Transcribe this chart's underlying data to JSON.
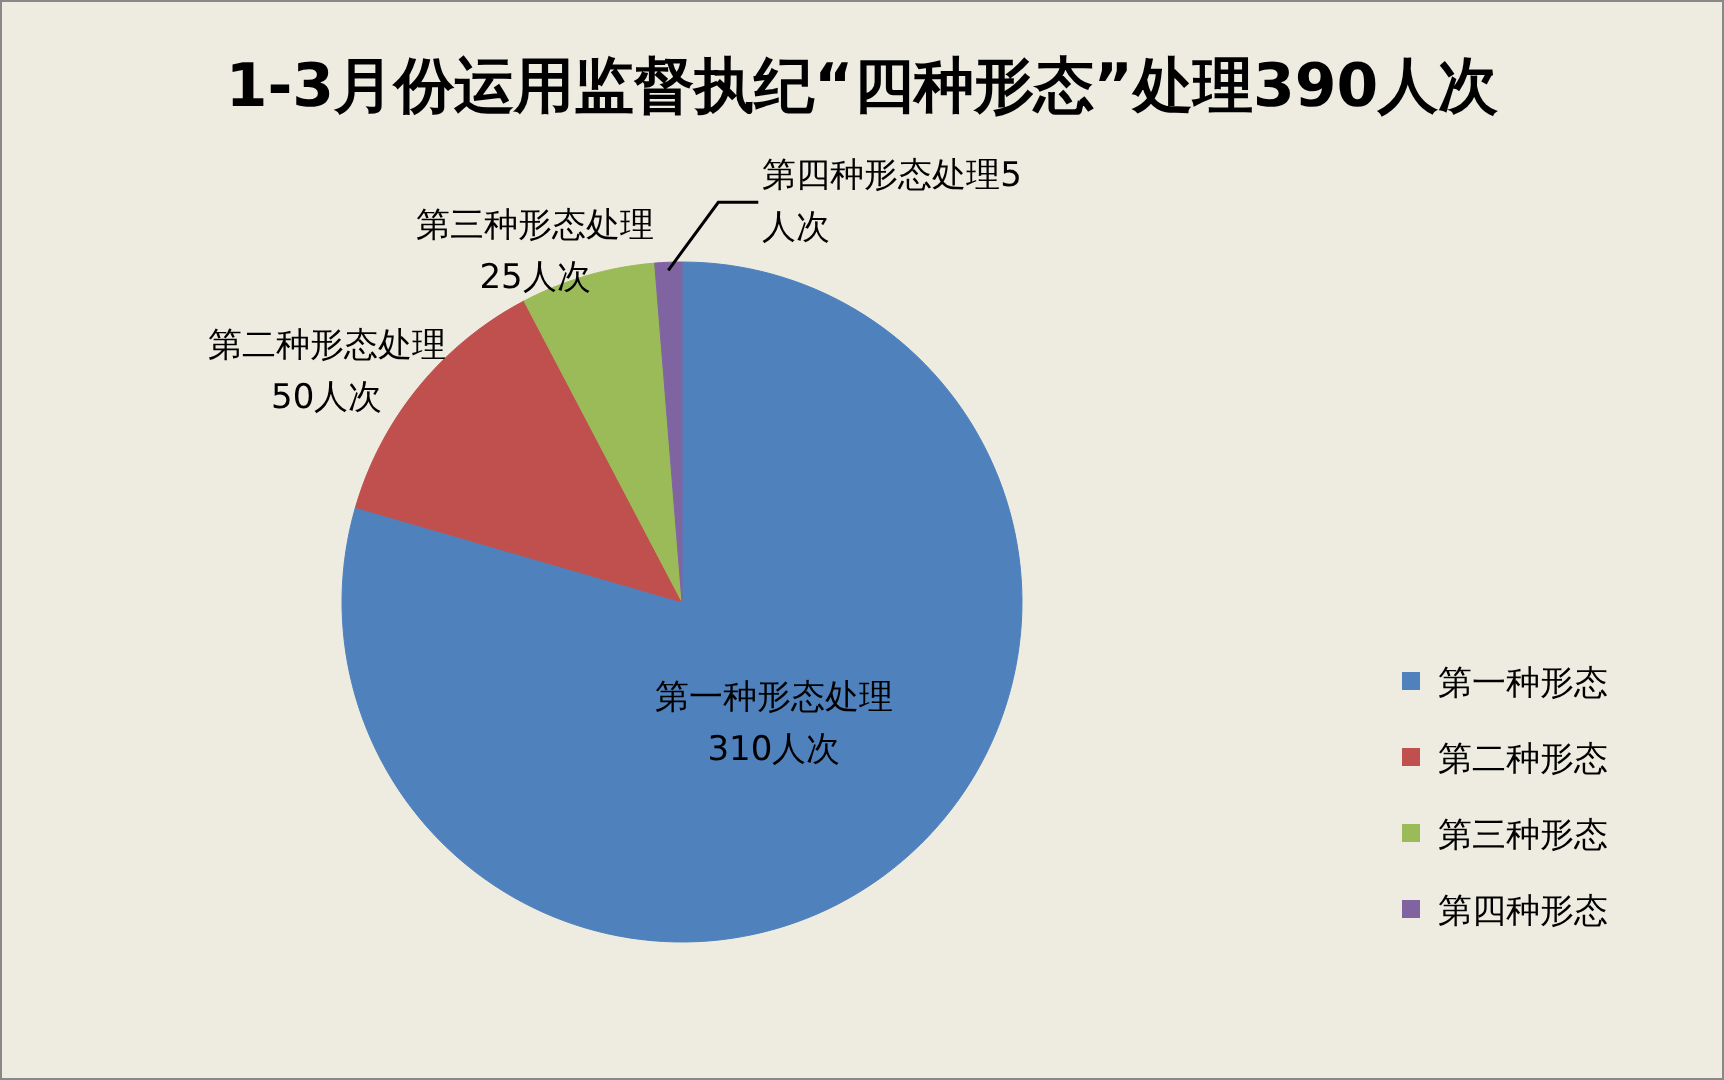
{
  "chart_data": {
    "type": "pie",
    "title": "1-3月份运用监督执纪“四种形态”处理390人次",
    "categories": [
      "第一种形态",
      "第二种形态",
      "第三种形态",
      "第四种形态"
    ],
    "values": [
      310,
      50,
      25,
      5
    ],
    "colors": [
      "#4f81bd",
      "#c0504d",
      "#9bbb59",
      "#8064a2"
    ],
    "value_labels": [
      "第一种形态处理310人次",
      "第二种形态处理50人次",
      "第三种形态处理25人次",
      "第四种形态处理5人次"
    ],
    "legend": "right"
  }
}
